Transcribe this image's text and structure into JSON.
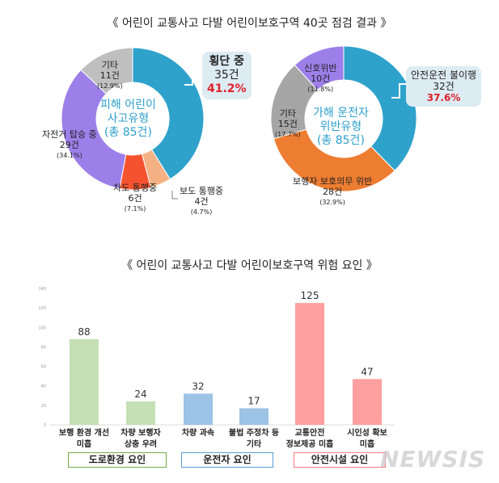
{
  "chart_data": [
    {
      "type": "pie",
      "title": "《 어린이 교통사고 다발 어린이보호구역 40곳 점검 결과 》",
      "center_label": [
        "피해 어린이",
        "사고유형",
        "(총 85건)"
      ],
      "slices": [
        {
          "label": "횡단 중",
          "value": 35,
          "count": "35건",
          "pct": "41.2%",
          "color": "#2fa2cc"
        },
        {
          "label": "보도 통행중",
          "value": 4,
          "count": "4건",
          "pct": "(4.7%)",
          "color": "#f4b183"
        },
        {
          "label": "차도 통행중",
          "value": 6,
          "count": "6건",
          "pct": "(7.1%)",
          "color": "#f5532f"
        },
        {
          "label": "자전거 탑승 중",
          "value": 29,
          "count": "29건",
          "pct": "(34.1%)",
          "color": "#9d7fe9"
        },
        {
          "label": "기타",
          "value": 11,
          "count": "11건",
          "pct": "(12.9%)",
          "color": "#bfbfbf"
        }
      ]
    },
    {
      "type": "pie",
      "center_label": [
        "가해 운전자",
        "위반유형",
        "(총 85건)"
      ],
      "slices": [
        {
          "label": "안전운전 불이행",
          "value": 32,
          "count": "32건",
          "pct": "37.6%",
          "color": "#2fa2cc"
        },
        {
          "label": "보행자 보호의무 위반",
          "value": 28,
          "count": "28건",
          "pct": "(32.9%)",
          "color": "#ed7d31"
        },
        {
          "label": "기타",
          "value": 15,
          "count": "15건",
          "pct": "(17.7%)",
          "color": "#a6a6a6"
        },
        {
          "label": "신호위반",
          "value": 10,
          "count": "10건",
          "pct": "(11.8%)",
          "color": "#9d7fe9"
        }
      ]
    },
    {
      "type": "bar",
      "title": "《 어린이 교통사고 다발 어린이보호구역 위험 요인 》",
      "ylim": [
        0,
        140
      ],
      "yticks": [
        0,
        20,
        40,
        60,
        80,
        100,
        120,
        140
      ],
      "categories": [
        [
          "보행 환경 개선",
          "미흡"
        ],
        [
          "차량 보행자",
          "상충 우려"
        ],
        [
          "차량 과속"
        ],
        [
          "불법 주정차 등",
          "기타"
        ],
        [
          "교통안전",
          "정보제공 미흡"
        ],
        [
          "시인성 확보",
          "미흡"
        ]
      ],
      "values": [
        88,
        24,
        32,
        17,
        125,
        47
      ],
      "colors": [
        "#c5e0b4",
        "#c5e0b4",
        "#9dc3e6",
        "#9dc3e6",
        "#ff9f9f",
        "#ff9f9f"
      ],
      "groups": [
        {
          "label": "도로환경 요인",
          "color": "#70ad47"
        },
        {
          "label": "운전자 요인",
          "color": "#5b9bd5"
        },
        {
          "label": "안전시설 요인",
          "color": "#ff7c80"
        }
      ]
    }
  ],
  "watermark": "NEWSIS"
}
